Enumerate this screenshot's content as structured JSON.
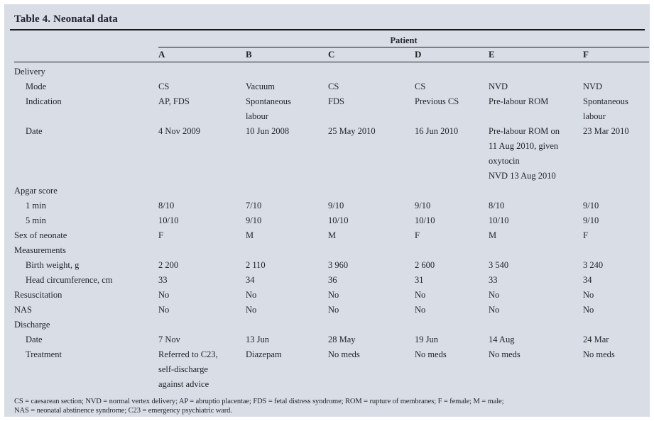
{
  "title": "Table 4. Neonatal data",
  "table": {
    "group_header": "Patient",
    "columns": [
      "A",
      "B",
      "C",
      "D",
      "E",
      "F"
    ],
    "rows": [
      {
        "label": "Delivery",
        "indent": 0,
        "values": null
      },
      {
        "label": "Mode",
        "indent": 1,
        "values": [
          "CS",
          "Vacuum",
          "CS",
          "CS",
          "NVD",
          "NVD"
        ]
      },
      {
        "label": "Indication",
        "indent": 1,
        "values": [
          "AP, FDS",
          "Spontaneous\nlabour",
          "FDS",
          "Previous CS",
          "Pre-labour ROM",
          "Spontaneous\nlabour"
        ]
      },
      {
        "label": "Date",
        "indent": 1,
        "values": [
          "4 Nov 2009",
          "10 Jun 2008",
          "25 May 2010",
          "16 Jun 2010",
          "Pre-labour ROM on\n11 Aug 2010, given\noxytocin\nNVD 13 Aug 2010",
          "23 Mar 2010"
        ]
      },
      {
        "label": "Apgar score",
        "indent": 0,
        "values": null
      },
      {
        "label": "1 min",
        "indent": 1,
        "values": [
          "8/10",
          "7/10",
          "9/10",
          "9/10",
          "8/10",
          "9/10"
        ]
      },
      {
        "label": "5 min",
        "indent": 1,
        "values": [
          "10/10",
          "9/10",
          "10/10",
          "10/10",
          "10/10",
          "9/10"
        ]
      },
      {
        "label": "Sex of neonate",
        "indent": 0,
        "values": [
          "F",
          "M",
          "M",
          "F",
          "M",
          "F"
        ]
      },
      {
        "label": "Measurements",
        "indent": 0,
        "values": null
      },
      {
        "label": "Birth weight, g",
        "indent": 1,
        "values": [
          "2 200",
          "2 110",
          "3 960",
          "2 600",
          "3 540",
          "3 240"
        ]
      },
      {
        "label": "Head circumference, cm",
        "indent": 1,
        "values": [
          "33",
          "34",
          "36",
          "31",
          "33",
          "34"
        ]
      },
      {
        "label": "Resuscitation",
        "indent": 0,
        "values": [
          "No",
          "No",
          "No",
          "No",
          "No",
          "No"
        ]
      },
      {
        "label": "NAS",
        "indent": 0,
        "values": [
          "No",
          "No",
          "No",
          "No",
          "No",
          "No"
        ]
      },
      {
        "label": "Discharge",
        "indent": 0,
        "values": null
      },
      {
        "label": "Date",
        "indent": 1,
        "values": [
          "7 Nov",
          "13 Jun",
          "28 May",
          "19 Jun",
          "14 Aug",
          "24 Mar"
        ]
      },
      {
        "label": "Treatment",
        "indent": 1,
        "values": [
          "Referred to C23,\nself-discharge\nagainst advice",
          "Diazepam",
          "No meds",
          "No meds",
          "No meds",
          "No meds"
        ]
      }
    ],
    "footnotes": [
      "CS = caesarean section; NVD = normal vertex delivery; AP = abruptio placentae; FDS = fetal distress syndrome; ROM = rupture of membranes; F = female; M = male;",
      "NAS = neonatal abstinence syndrome; C23 = emergency psychiatric ward."
    ]
  },
  "colors": {
    "background": "#d8dde6",
    "text": "#23262b",
    "rule": "#17191d"
  }
}
